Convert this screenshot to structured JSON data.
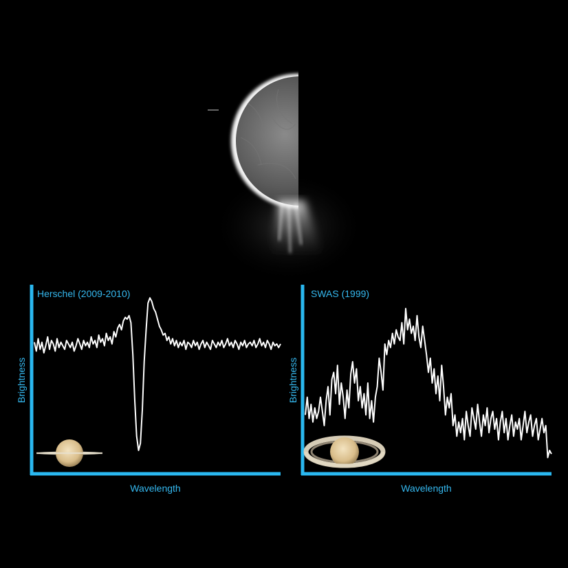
{
  "colors": {
    "axis": "#2ab8f0",
    "label": "#35b9f0",
    "trace": "#ffffff",
    "background": "#000000"
  },
  "chart_data": [
    {
      "type": "line",
      "title": "Herschel (2009-2010)",
      "xlabel": "Wavelength",
      "ylabel": "Brightness",
      "xlim": [
        0,
        130
      ],
      "ylim": [
        0,
        1
      ],
      "grid": false,
      "icon": "saturn-rings-edge-on-icon",
      "series": [
        {
          "x": [
            0,
            1,
            2,
            3,
            4,
            5,
            6,
            7,
            8,
            9,
            10,
            11,
            12,
            13,
            14,
            15,
            16,
            17,
            18,
            19,
            20,
            21,
            22,
            23,
            24,
            25,
            26,
            27,
            28,
            29,
            30,
            31,
            32,
            33,
            34,
            35,
            36,
            37,
            38,
            39,
            40,
            41,
            42,
            43,
            44,
            45,
            46,
            47,
            48,
            49,
            50,
            51,
            52,
            53,
            54,
            55,
            56,
            57,
            58,
            59,
            60,
            61,
            62,
            63,
            64,
            65,
            66,
            67,
            68,
            69,
            70,
            71,
            72,
            73,
            74,
            75,
            76,
            77,
            78,
            79,
            80,
            81,
            82,
            83,
            84,
            85,
            86,
            87,
            88,
            89,
            90,
            91,
            92,
            93,
            94,
            95,
            96,
            97,
            98,
            99,
            100,
            101,
            102,
            103,
            104,
            105,
            106,
            107,
            108,
            109,
            110,
            111,
            112,
            113,
            114,
            115,
            116,
            117,
            118,
            119,
            120,
            121,
            122,
            123,
            124,
            125,
            126,
            127,
            128,
            129,
            130
          ],
          "y": [
            0.73,
            0.68,
            0.75,
            0.69,
            0.73,
            0.67,
            0.71,
            0.76,
            0.69,
            0.74,
            0.72,
            0.68,
            0.75,
            0.7,
            0.73,
            0.71,
            0.69,
            0.74,
            0.72,
            0.7,
            0.73,
            0.68,
            0.71,
            0.75,
            0.72,
            0.69,
            0.74,
            0.71,
            0.73,
            0.7,
            0.76,
            0.72,
            0.74,
            0.7,
            0.77,
            0.73,
            0.75,
            0.71,
            0.78,
            0.74,
            0.76,
            0.72,
            0.79,
            0.76,
            0.81,
            0.83,
            0.8,
            0.85,
            0.87,
            0.86,
            0.88,
            0.84,
            0.66,
            0.4,
            0.2,
            0.12,
            0.16,
            0.35,
            0.62,
            0.8,
            0.95,
            0.98,
            0.96,
            0.92,
            0.9,
            0.86,
            0.82,
            0.8,
            0.77,
            0.78,
            0.74,
            0.76,
            0.72,
            0.75,
            0.71,
            0.74,
            0.7,
            0.73,
            0.71,
            0.74,
            0.69,
            0.73,
            0.72,
            0.7,
            0.74,
            0.71,
            0.73,
            0.69,
            0.72,
            0.74,
            0.7,
            0.73,
            0.71,
            0.69,
            0.74,
            0.72,
            0.7,
            0.73,
            0.71,
            0.74,
            0.7,
            0.72,
            0.75,
            0.71,
            0.73,
            0.7,
            0.74,
            0.72,
            0.69,
            0.73,
            0.71,
            0.74,
            0.7,
            0.72,
            0.73,
            0.71,
            0.74,
            0.7,
            0.72,
            0.75,
            0.71,
            0.73,
            0.7,
            0.74,
            0.72,
            0.69,
            0.73,
            0.71,
            0.72,
            0.7,
            0.72
          ]
        }
      ]
    },
    {
      "type": "line",
      "title": "SWAS (1999)",
      "xlabel": "Wavelength",
      "ylabel": "Brightness",
      "xlim": [
        0,
        130
      ],
      "ylim": [
        0,
        1
      ],
      "grid": false,
      "icon": "saturn-rings-open-icon",
      "series": [
        {
          "x": [
            0,
            1,
            2,
            3,
            4,
            5,
            6,
            7,
            8,
            9,
            10,
            11,
            12,
            13,
            14,
            15,
            16,
            17,
            18,
            19,
            20,
            21,
            22,
            23,
            24,
            25,
            26,
            27,
            28,
            29,
            30,
            31,
            32,
            33,
            34,
            35,
            36,
            37,
            38,
            39,
            40,
            41,
            42,
            43,
            44,
            45,
            46,
            47,
            48,
            49,
            50,
            51,
            52,
            53,
            54,
            55,
            56,
            57,
            58,
            59,
            60,
            61,
            62,
            63,
            64,
            65,
            66,
            67,
            68,
            69,
            70,
            71,
            72,
            73,
            74,
            75,
            76,
            77,
            78,
            79,
            80,
            81,
            82,
            83,
            84,
            85,
            86,
            87,
            88,
            89,
            90,
            91,
            92,
            93,
            94,
            95,
            96,
            97,
            98,
            99,
            100,
            101,
            102,
            103,
            104,
            105,
            106,
            107,
            108,
            109,
            110,
            111,
            112,
            113,
            114,
            115,
            116,
            117,
            118,
            119,
            120,
            121,
            122,
            123,
            124,
            125,
            126,
            127,
            128,
            129,
            130
          ],
          "y": [
            0.32,
            0.42,
            0.3,
            0.38,
            0.28,
            0.36,
            0.3,
            0.34,
            0.42,
            0.34,
            0.26,
            0.4,
            0.48,
            0.32,
            0.52,
            0.56,
            0.44,
            0.6,
            0.38,
            0.5,
            0.42,
            0.3,
            0.46,
            0.36,
            0.55,
            0.62,
            0.5,
            0.58,
            0.4,
            0.48,
            0.36,
            0.44,
            0.32,
            0.5,
            0.3,
            0.4,
            0.28,
            0.42,
            0.48,
            0.64,
            0.56,
            0.46,
            0.72,
            0.66,
            0.74,
            0.7,
            0.78,
            0.72,
            0.8,
            0.76,
            0.74,
            0.84,
            0.72,
            0.92,
            0.8,
            0.86,
            0.78,
            0.82,
            0.74,
            0.88,
            0.76,
            0.7,
            0.82,
            0.74,
            0.66,
            0.56,
            0.64,
            0.5,
            0.58,
            0.44,
            0.54,
            0.4,
            0.6,
            0.48,
            0.32,
            0.42,
            0.36,
            0.44,
            0.26,
            0.32,
            0.2,
            0.28,
            0.22,
            0.3,
            0.18,
            0.34,
            0.26,
            0.2,
            0.36,
            0.3,
            0.24,
            0.38,
            0.28,
            0.2,
            0.32,
            0.26,
            0.36,
            0.22,
            0.3,
            0.34,
            0.24,
            0.3,
            0.18,
            0.28,
            0.34,
            0.22,
            0.3,
            0.18,
            0.26,
            0.32,
            0.2,
            0.28,
            0.24,
            0.3,
            0.18,
            0.26,
            0.34,
            0.22,
            0.28,
            0.32,
            0.2,
            0.26,
            0.3,
            0.18,
            0.24,
            0.3,
            0.22,
            0.26,
            0.08,
            0.12,
            0.1
          ]
        }
      ]
    }
  ]
}
